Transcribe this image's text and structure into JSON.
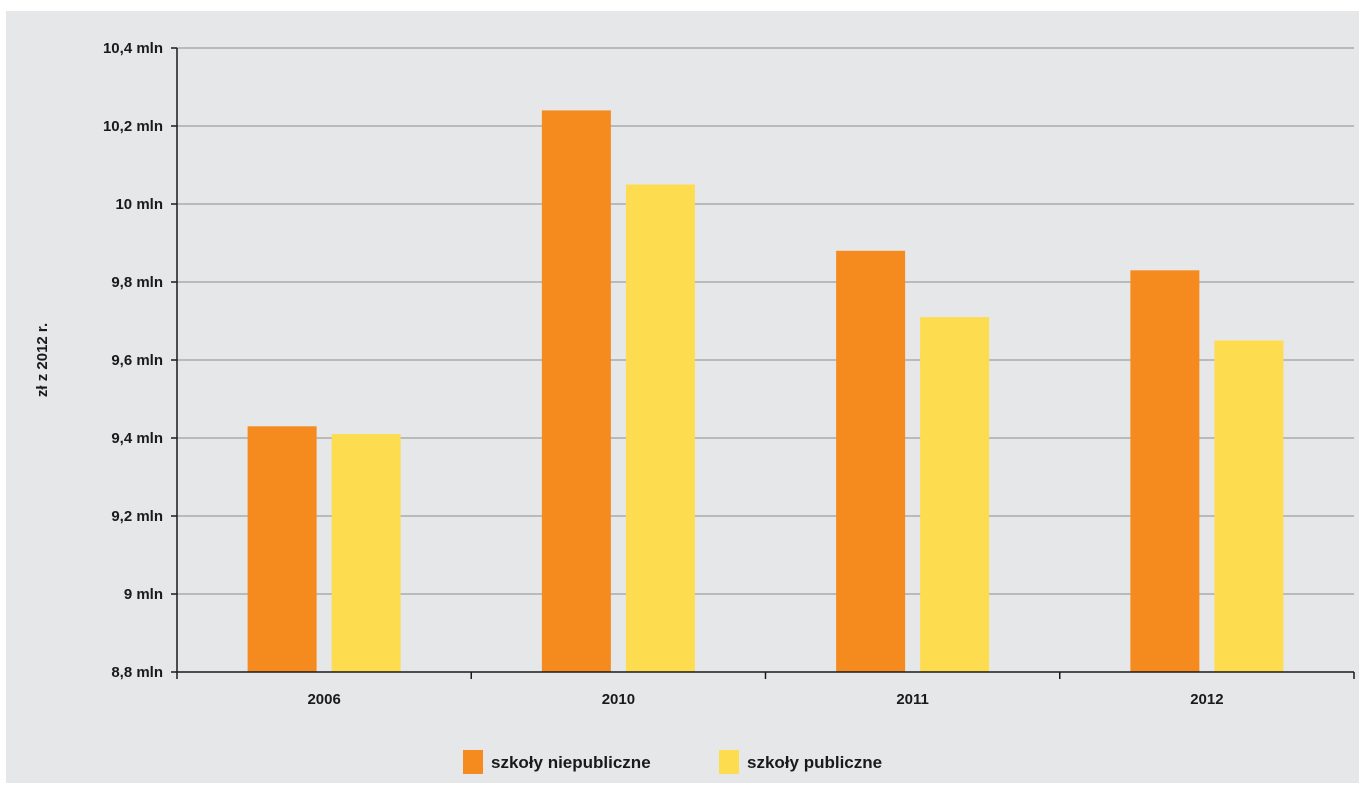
{
  "chart_data": {
    "type": "bar",
    "title": "",
    "xlabel": "",
    "ylabel": "zł z 2012 r.",
    "ylim": [
      8.8,
      10.4
    ],
    "y_ticks": [
      8.8,
      9.0,
      9.2,
      9.4,
      9.6,
      9.8,
      10.0,
      10.2,
      10.4
    ],
    "y_tick_labels": [
      "8,8 mln",
      "9 mln",
      "9,2 mln",
      "9,4 mln",
      "9,6 mln",
      "9,8 mln",
      "10 mln",
      "10,2 mln",
      "10,4 mln"
    ],
    "categories": [
      "2006",
      "2010",
      "2011",
      "2012"
    ],
    "series": [
      {
        "name": "szkoły niepubliczne",
        "color": "#f58b1f",
        "values": [
          9.43,
          10.24,
          9.88,
          9.83
        ]
      },
      {
        "name": "szkoły publiczne",
        "color": "#fddc4f",
        "values": [
          9.41,
          10.05,
          9.71,
          9.65
        ]
      }
    ],
    "grid": true,
    "legend_position": "bottom-center"
  }
}
